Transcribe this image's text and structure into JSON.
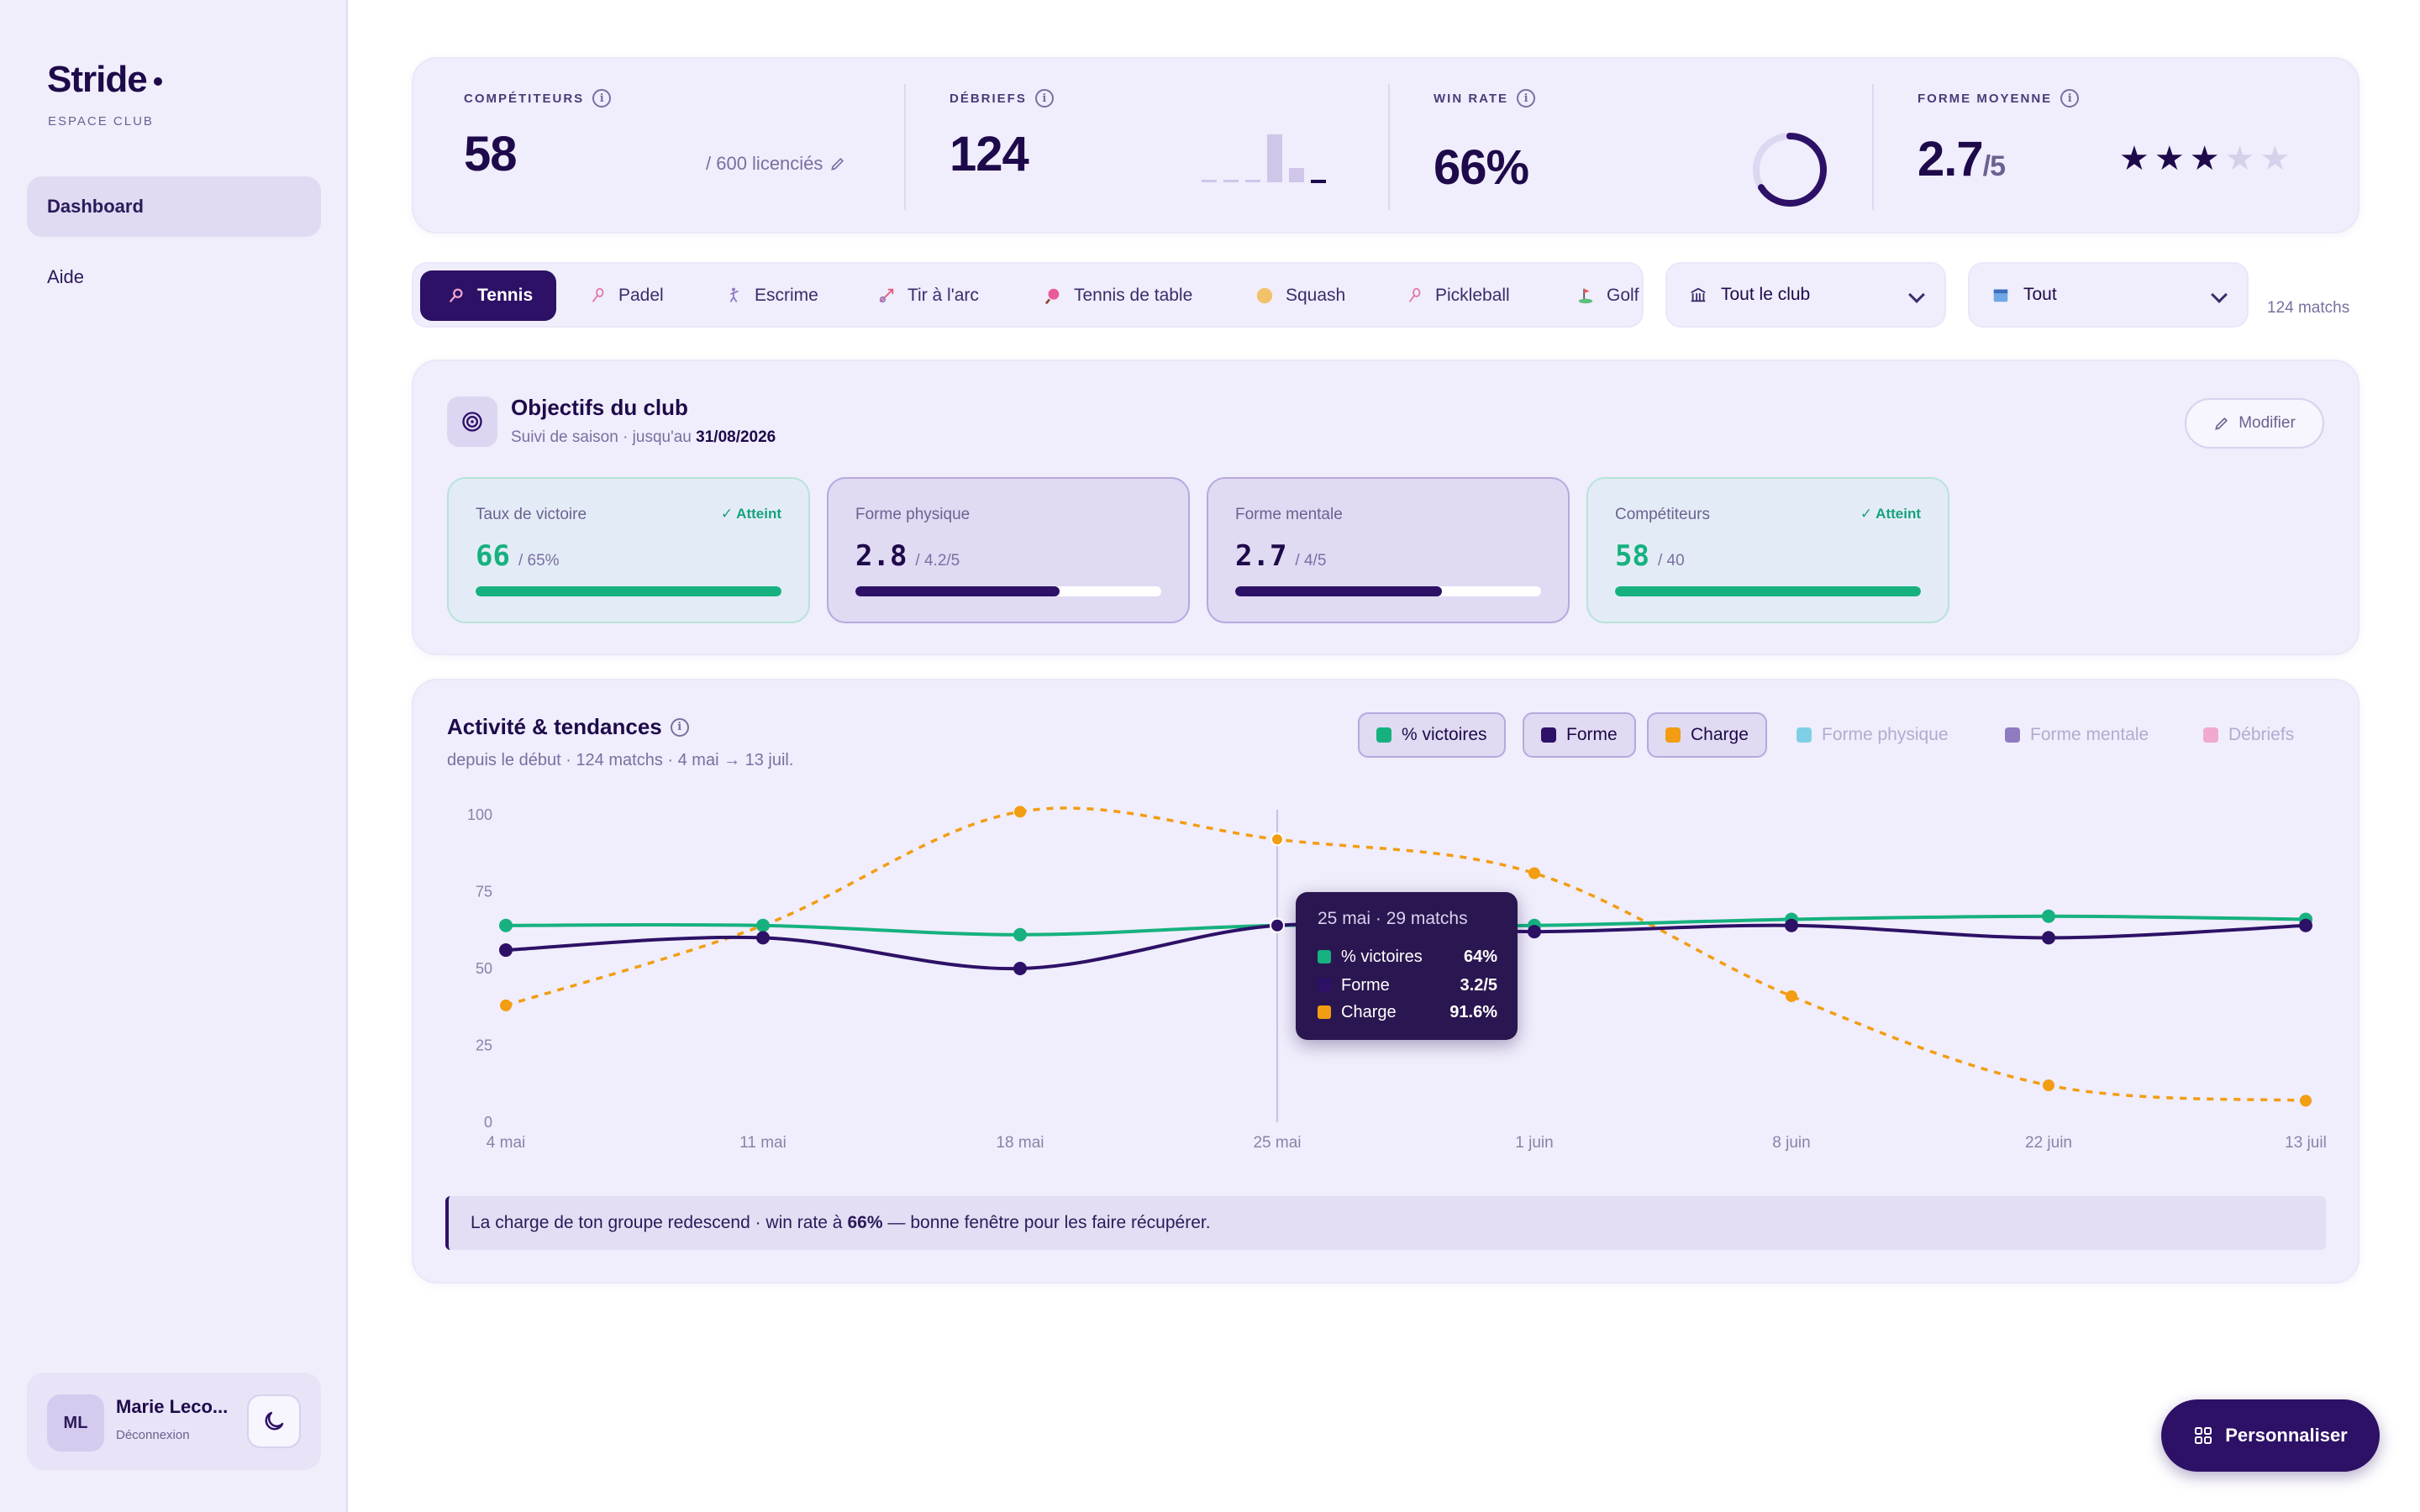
{
  "sidebar": {
    "brand": "Stride",
    "brand_sub": "ESPACE CLUB",
    "nav": [
      {
        "label": "Dashboard",
        "active": true
      },
      {
        "label": "Aide",
        "active": false
      }
    ],
    "user": {
      "initials": "ML",
      "name": "Marie Leco...",
      "logout": "Déconnexion"
    }
  },
  "kpis": {
    "competitors": {
      "label": "COMPÉTITEURS",
      "value": "58",
      "sub": "/ 600 licenciés"
    },
    "debriefs": {
      "label": "DÉBRIEFS",
      "value": "124"
    },
    "winrate": {
      "label": "WIN RATE",
      "value": "66%",
      "ring_fraction": 0.66
    },
    "form": {
      "label": "FORME MOYENNE",
      "value": "2.7",
      "suffix": "/5",
      "stars": 3,
      "stars_max": 5
    }
  },
  "sports": [
    "Tennis",
    "Padel",
    "Escrime",
    "Tir à l'arc",
    "Tennis de table",
    "Squash",
    "Pickleball",
    "Golf"
  ],
  "active_sport": "Tennis",
  "filters": {
    "scope": "Tout le club",
    "period": "Tout",
    "count": "124 matchs"
  },
  "objectives": {
    "title": "Objectifs du club",
    "sub_prefix": "Suivi de saison · jusqu'au",
    "sub_date": "31/08/2026",
    "edit_label": "Modifier",
    "goals": [
      {
        "label": "Taux de victoire",
        "value": "66",
        "target": "/ 65%",
        "badge": "✓ Atteint",
        "progress": 1.0,
        "status": "ok"
      },
      {
        "label": "Forme physique",
        "value": "2.8",
        "target": "/ 4.2/5",
        "badge": "",
        "progress": 0.667,
        "status": "pending"
      },
      {
        "label": "Forme mentale",
        "value": "2.7",
        "target": "/ 4/5",
        "badge": "",
        "progress": 0.675,
        "status": "pending"
      },
      {
        "label": "Compétiteurs",
        "value": "58",
        "target": "/ 40",
        "badge": "✓ Atteint",
        "progress": 1.0,
        "status": "ok"
      }
    ]
  },
  "activity": {
    "title": "Activité & tendances",
    "sub": "depuis le début · 124 matchs · 4 mai → 13 juil.",
    "legend": [
      {
        "label": "% victoires",
        "color": "#16b17f",
        "on": true
      },
      {
        "label": "Forme",
        "color": "#2d1166",
        "on": true
      },
      {
        "label": "Charge",
        "color": "#f29d12",
        "on": true
      },
      {
        "label": "Forme physique",
        "color": "#7fd0e6",
        "on": false
      },
      {
        "label": "Forme mentale",
        "color": "#8e7bc0",
        "on": false
      },
      {
        "label": "Débriefs",
        "color": "#f2a9cf",
        "on": false
      }
    ],
    "insight_prefix": "La charge de ton groupe redescend · win rate à",
    "insight_value": "66%",
    "insight_suffix": "— bonne fenêtre pour les faire récupérer.",
    "tooltip": {
      "title": "25 mai · 29 matchs",
      "rows": [
        {
          "label": "% victoires",
          "value": "64%",
          "color": "#16b17f"
        },
        {
          "label": "Forme",
          "value": "3.2/5",
          "color": "#2d1166"
        },
        {
          "label": "Charge",
          "value": "91.6%",
          "color": "#f29d12"
        }
      ]
    }
  },
  "chart_data": {
    "type": "line",
    "x": [
      "4 mai",
      "11 mai",
      "18 mai",
      "25 mai",
      "1 juin",
      "8 juin",
      "22 juin",
      "13 juil"
    ],
    "ylim": [
      0,
      100
    ],
    "yticks": [
      0,
      25,
      50,
      75,
      100
    ],
    "series": [
      {
        "name": "% victoires",
        "color": "#16b17f",
        "dashed": false,
        "values": [
          64,
          64,
          61,
          64,
          64,
          66,
          67,
          66
        ]
      },
      {
        "name": "Forme",
        "color": "#2d1166",
        "dashed": false,
        "values": [
          56,
          60,
          50,
          64,
          62,
          64,
          60,
          64
        ]
      },
      {
        "name": "Charge",
        "color": "#f29d12",
        "dashed": false,
        "values": [
          38,
          64,
          101,
          92,
          81,
          41,
          12,
          7
        ]
      }
    ],
    "highlight_index": 3
  },
  "fab_label": "Personnaliser"
}
